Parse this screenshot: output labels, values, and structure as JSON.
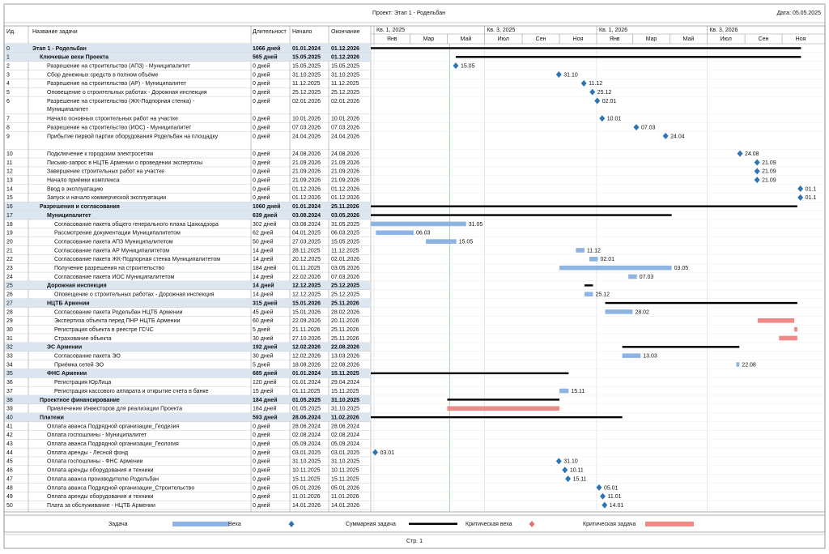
{
  "chart_data": {
    "type": "gantt",
    "title": "Проект: Этап 1 - Родельбан",
    "date": "Дата: 05.05.2025",
    "columns": [
      "Ид.",
      "Название задачи",
      "Длительност",
      "Начало",
      "Окончание"
    ],
    "xlim": [
      "01.01.2025",
      "31.12.2026"
    ],
    "periods": [
      "Кв. 1, 2025",
      "Кв. 3, 2025",
      "Кв. 1, 2026",
      "Кв. 3, 2026"
    ],
    "months": [
      "Янв",
      "Мар",
      "Май",
      "Июл",
      "Сен",
      "Ноя",
      "Янв",
      "Мар",
      "Май",
      "Июл",
      "Сен",
      "Ноя"
    ],
    "tasks": [
      {
        "id": "0",
        "name": "Этап 1 - Родельбан",
        "duration": "1066 дней",
        "start": "01.01.2024",
        "finish": "01.12.2026",
        "level": 0,
        "summary": true
      },
      {
        "id": "1",
        "name": "Ключевые вехи Проекта",
        "duration": "565 дней",
        "start": "15.05.2025",
        "finish": "01.12.2026",
        "level": 1,
        "summary": true
      },
      {
        "id": "2",
        "name": "Разрешение на строительство (АПЗ) - Муниципалитет",
        "duration": "0 дней",
        "start": "15.05.2025",
        "finish": "15.05.2025",
        "level": 2,
        "label": "15.05"
      },
      {
        "id": "3",
        "name": "Сбор денежных средств в полном объёме",
        "duration": "0 дней",
        "start": "31.10.2025",
        "finish": "31.10.2025",
        "level": 2,
        "label": "31.10"
      },
      {
        "id": "4",
        "name": "Разрешение на строительство (АР) - Муниципалитет",
        "duration": "0 дней",
        "start": "11.12.2025",
        "finish": "11.12.2025",
        "level": 2,
        "label": "11.12"
      },
      {
        "id": "5",
        "name": "Оповещение о строительных работах - Дорожная инспекция",
        "duration": "0 дней",
        "start": "25.12.2025",
        "finish": "25.12.2025",
        "level": 2,
        "label": "25.12"
      },
      {
        "id": "6",
        "name": "Разрешение на строительство (ЖК-Подпорная стенка) - Муниципалитет",
        "duration": "0 дней",
        "start": "02.01.2026",
        "finish": "02.01.2026",
        "level": 2,
        "label": "02.01"
      },
      {
        "id": "7",
        "name": "Начало основных строительных работ на участке",
        "duration": "0 дней",
        "start": "10.01.2026",
        "finish": "10.01.2026",
        "level": 2,
        "label": "10.01"
      },
      {
        "id": "8",
        "name": "Разрешение на строительство (ИОС) - Муниципалитет",
        "duration": "0 дней",
        "start": "07.03.2026",
        "finish": "07.03.2026",
        "level": 2,
        "label": "07.03"
      },
      {
        "id": "9",
        "name": "Прибытие первой партии оборудования Родельбан на площадку",
        "duration": "0 дней",
        "start": "24.04.2026",
        "finish": "24.04.2026",
        "level": 2,
        "label": "24.04"
      },
      {
        "id": "10",
        "name": "Подключение к городским электросетям",
        "duration": "0 дней",
        "start": "24.08.2026",
        "finish": "24.08.2026",
        "level": 2,
        "label": "24.08"
      },
      {
        "id": "11",
        "name": "Письмо-запрос в НЦТБ Армении о проведении экспертизы",
        "duration": "0 дней",
        "start": "21.09.2026",
        "finish": "21.09.2026",
        "level": 2,
        "label": "21.09"
      },
      {
        "id": "12",
        "name": "Завершение строительных работ на участке",
        "duration": "0 дней",
        "start": "21.09.2026",
        "finish": "21.09.2026",
        "level": 2,
        "label": "21.09"
      },
      {
        "id": "13",
        "name": "Начало приёмки комплекса",
        "duration": "0 дней",
        "start": "21.09.2026",
        "finish": "21.09.2026",
        "level": 2,
        "label": "21.09"
      },
      {
        "id": "14",
        "name": "Ввод в эксплуатацию",
        "duration": "0 дней",
        "start": "01.12.2026",
        "finish": "01.12.2026",
        "level": 2,
        "label": "01.1"
      },
      {
        "id": "15",
        "name": "Запуск и начало коммерческой эксплуатации",
        "duration": "0 дней",
        "start": "01.12.2026",
        "finish": "01.12.2026",
        "level": 2,
        "label": "01.1"
      },
      {
        "id": "16",
        "name": "Разрешения и согласования",
        "duration": "1060 дней",
        "start": "01.01.2024",
        "finish": "25.11.2026",
        "level": 1,
        "summary": true
      },
      {
        "id": "17",
        "name": "Муниципалитет",
        "duration": "639 дней",
        "start": "03.08.2024",
        "finish": "03.05.2026",
        "level": 2,
        "summary": true
      },
      {
        "id": "18",
        "name": "Согласование пакета общего генерального плана Цахкадзора",
        "duration": "302 дней",
        "start": "03.08.2024",
        "finish": "31.05.2025",
        "level": 3,
        "label": "31.05"
      },
      {
        "id": "19",
        "name": "Рассмотрение документации Муниципалитетом",
        "duration": "62 дней",
        "start": "04.01.2025",
        "finish": "06.03.2025",
        "level": 3,
        "label": "06.03"
      },
      {
        "id": "20",
        "name": "Согласование пакета АПЗ Муниципалитетом",
        "duration": "50 дней",
        "start": "27.03.2025",
        "finish": "15.05.2025",
        "level": 3,
        "label": "15.05"
      },
      {
        "id": "21",
        "name": "Согласование пакета АР Муниципалитетом",
        "duration": "14 дней",
        "start": "28.11.2025",
        "finish": "11.12.2025",
        "level": 3,
        "label": "11.12"
      },
      {
        "id": "22",
        "name": "Согласование пакета ЖК-Подпорная стенка Муниципалитетом",
        "duration": "14 дней",
        "start": "20.12.2025",
        "finish": "02.01.2026",
        "level": 3,
        "label": "02.01"
      },
      {
        "id": "23",
        "name": "Получение разрешения на строительство",
        "duration": "184 дней",
        "start": "01.11.2025",
        "finish": "03.05.2026",
        "level": 3,
        "label": "03.05"
      },
      {
        "id": "24",
        "name": "Согласование пакета ИОС Муниципалитетом",
        "duration": "14 дней",
        "start": "22.02.2026",
        "finish": "07.03.2026",
        "level": 3,
        "label": "07.03"
      },
      {
        "id": "25",
        "name": "Дорожная инспекция",
        "duration": "14 дней",
        "start": "12.12.2025",
        "finish": "25.12.2025",
        "level": 2,
        "summary": true
      },
      {
        "id": "26",
        "name": "Оповещение о строительных работах - Дорожная инспекция",
        "duration": "14 дней",
        "start": "12.12.2025",
        "finish": "25.12.2025",
        "level": 3,
        "label": "25.12"
      },
      {
        "id": "27",
        "name": "НЦТБ Армении",
        "duration": "315 дней",
        "start": "15.01.2026",
        "finish": "25.11.2026",
        "level": 2,
        "summary": true
      },
      {
        "id": "28",
        "name": "Согласование пакета Родельбан НЦТБ Армении",
        "duration": "45 дней",
        "start": "15.01.2026",
        "finish": "28.02.2026",
        "level": 3,
        "label": "28.02"
      },
      {
        "id": "29",
        "name": "Экспертиза объекта перед ПНР НЦТБ Армении",
        "duration": "60 дней",
        "start": "22.09.2026",
        "finish": "20.11.2026",
        "level": 3,
        "critical": true
      },
      {
        "id": "30",
        "name": "Регистрация объекта в реестре ГСЧС",
        "duration": "5 дней",
        "start": "21.11.2026",
        "finish": "25.11.2026",
        "level": 3,
        "critical": true
      },
      {
        "id": "31",
        "name": "Страхование объекта",
        "duration": "30 дней",
        "start": "27.10.2026",
        "finish": "25.11.2026",
        "level": 3,
        "critical": true
      },
      {
        "id": "32",
        "name": "ЭС Армении",
        "duration": "192 дней",
        "start": "12.02.2026",
        "finish": "22.08.2026",
        "level": 2,
        "summary": true
      },
      {
        "id": "33",
        "name": "Согласование пакета ЭО",
        "duration": "30 дней",
        "start": "12.02.2026",
        "finish": "13.03.2026",
        "level": 3,
        "label": "13.03"
      },
      {
        "id": "34",
        "name": "Приёмка сетей ЭО",
        "duration": "5 дней",
        "start": "18.08.2026",
        "finish": "22.08.2026",
        "level": 3,
        "label": "22.08"
      },
      {
        "id": "35",
        "name": "ФНС Армении",
        "duration": "685 дней",
        "start": "01.01.2024",
        "finish": "15.11.2025",
        "level": 2,
        "summary": true
      },
      {
        "id": "36",
        "name": "Регистрация ЮрЛица",
        "duration": "120 дней",
        "start": "01.01.2024",
        "finish": "29.04.2024",
        "level": 3
      },
      {
        "id": "37",
        "name": "Регистрация кассового аппарата и открытие счета в банке",
        "duration": "15 дней",
        "start": "01.11.2025",
        "finish": "15.11.2025",
        "level": 3,
        "label": "15.11"
      },
      {
        "id": "38",
        "name": "Проектное финансирование",
        "duration": "184 дней",
        "start": "01.05.2025",
        "finish": "31.10.2025",
        "level": 1,
        "summary": true
      },
      {
        "id": "39",
        "name": "Привлечение Инвесторов для реализации Проекта",
        "duration": "184 дней",
        "start": "01.05.2025",
        "finish": "31.10.2025",
        "level": 2,
        "critical": true
      },
      {
        "id": "40",
        "name": "Платежи",
        "duration": "593 дней",
        "start": "28.06.2024",
        "finish": "11.02.2026",
        "level": 1,
        "summary": true
      },
      {
        "id": "41",
        "name": "Оплата аванса Подрядной организации_Геодезия",
        "duration": "0 дней",
        "start": "28.06.2024",
        "finish": "28.06.2024",
        "level": 2
      },
      {
        "id": "42",
        "name": "Оплата госпошлины - Муниципалитет",
        "duration": "0 дней",
        "start": "02.08.2024",
        "finish": "02.08.2024",
        "level": 2
      },
      {
        "id": "43",
        "name": "Оплата аванса Подрядной организации_Геология",
        "duration": "0 дней",
        "start": "05.09.2024",
        "finish": "05.09.2024",
        "level": 2
      },
      {
        "id": "44",
        "name": "Оплата аренды - Лесной фонд",
        "duration": "0 дней",
        "start": "03.01.2025",
        "finish": "03.01.2025",
        "level": 2,
        "label": "03.01"
      },
      {
        "id": "45",
        "name": "Оплата госпошлины - ФНС Армении",
        "duration": "0 дней",
        "start": "31.10.2025",
        "finish": "31.10.2025",
        "level": 2,
        "label": "31.10"
      },
      {
        "id": "46",
        "name": "Оплата аренды оборудования и техники",
        "duration": "0 дней",
        "start": "10.11.2025",
        "finish": "10.11.2025",
        "level": 2,
        "label": "10.11"
      },
      {
        "id": "47",
        "name": "Оплата аванса производителю Родельбан",
        "duration": "0 дней",
        "start": "15.11.2025",
        "finish": "15.11.2025",
        "level": 2,
        "label": "15.11"
      },
      {
        "id": "48",
        "name": "Оплата аванса Подрядной организации_Строительство",
        "duration": "0 дней",
        "start": "05.01.2026",
        "finish": "05.01.2026",
        "level": 2,
        "label": "05.01"
      },
      {
        "id": "49",
        "name": "Оплата аренды оборудования и техники",
        "duration": "0 дней",
        "start": "11.01.2026",
        "finish": "11.01.2026",
        "level": 2,
        "label": "11.01"
      },
      {
        "id": "50",
        "name": "Плата за обслуживание - НЦТБ Армении",
        "duration": "0 дней",
        "start": "14.01.2026",
        "finish": "14.01.2026",
        "level": 2,
        "label": "14.01"
      }
    ],
    "legend": [
      "Задача",
      "Веха",
      "Суммарная задача",
      "Критическая веха",
      "Критическая задача"
    ],
    "footer": "Стр. 1"
  }
}
